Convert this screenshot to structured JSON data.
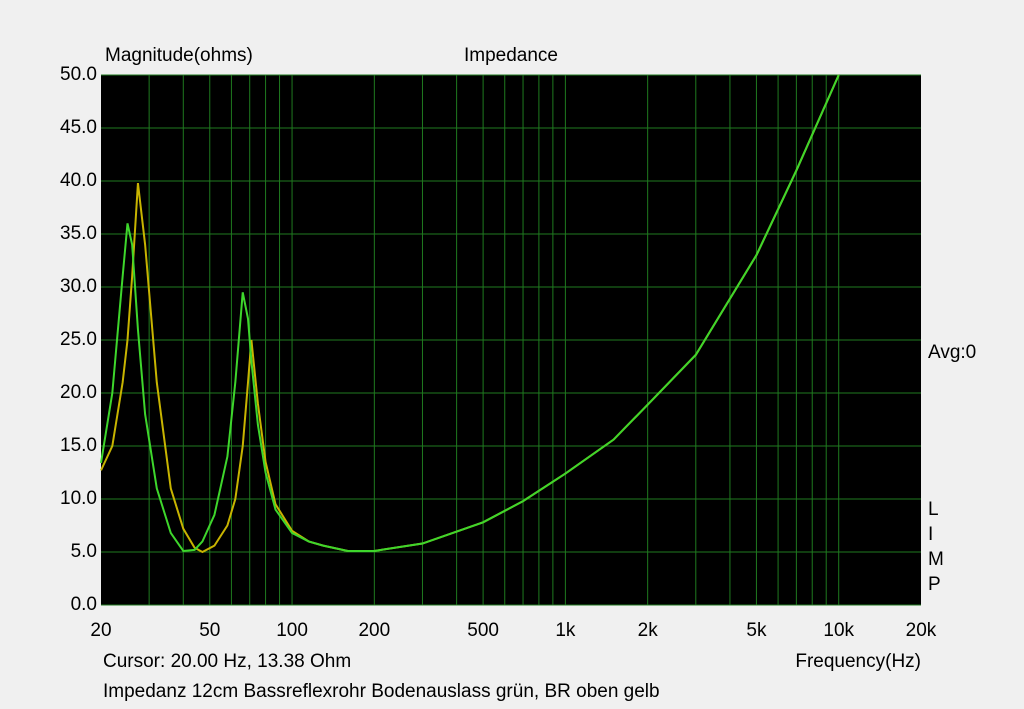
{
  "header": {
    "y_axis_title": "Magnitude(ohms)",
    "avg": "Avg:0",
    "limp": [
      "L",
      "I",
      "M",
      "P"
    ]
  },
  "chart_data": {
    "type": "line",
    "title": "Impedance",
    "xlabel": "Frequency(Hz)",
    "log_x": true,
    "x": [
      20,
      22,
      24,
      25,
      26,
      27.3,
      29,
      32,
      36,
      40,
      44,
      47,
      52,
      58,
      62,
      66,
      69,
      71,
      75,
      80,
      87,
      100,
      115,
      130,
      160,
      200,
      300,
      500,
      700,
      1000,
      1500,
      2000,
      3000,
      5000,
      7000,
      10000
    ],
    "series": [
      {
        "name": "BR oben gelb",
        "color": "#c8b400",
        "values": [
          12.7,
          15,
          21,
          25,
          31,
          39.8,
          34,
          21,
          11,
          7.2,
          5.4,
          5.0,
          5.6,
          7.5,
          10,
          15,
          21,
          25,
          19,
          13.5,
          9.5,
          7.0,
          6.0,
          5.6,
          5.1,
          5.1,
          5.8,
          7.8,
          9.8,
          12.4,
          15.6,
          18.9,
          23.6,
          33,
          41,
          50
        ]
      },
      {
        "name": "Bodenauslass grün",
        "color": "#3ed62c",
        "values": [
          13.4,
          20,
          31,
          36,
          34,
          26,
          18,
          11,
          6.8,
          5.1,
          5.2,
          6.0,
          8.5,
          14,
          21,
          29.5,
          27,
          23,
          17,
          12.5,
          9,
          6.8,
          6.0,
          5.6,
          5.1,
          5.1,
          5.8,
          7.8,
          9.8,
          12.4,
          15.6,
          18.9,
          23.6,
          33,
          41,
          50
        ]
      }
    ],
    "xlim": [
      20,
      20000
    ],
    "ylim": [
      0,
      50
    ],
    "xticks": [
      20,
      50,
      100,
      200,
      500,
      {
        "value": 1000,
        "label": "1k"
      },
      {
        "value": 2000,
        "label": "2k"
      },
      {
        "value": 5000,
        "label": "5k"
      },
      {
        "value": 10000,
        "label": "10k"
      },
      {
        "value": 20000,
        "label": "20k"
      }
    ],
    "x_gridlines": [
      30,
      40,
      50,
      60,
      70,
      80,
      90,
      100,
      200,
      300,
      400,
      500,
      600,
      700,
      800,
      900,
      1000,
      2000,
      3000,
      4000,
      5000,
      6000,
      7000,
      8000,
      9000,
      10000
    ],
    "yticks": [
      {
        "value": 0,
        "label": "0.0"
      },
      {
        "value": 5,
        "label": "5.0"
      },
      {
        "value": 10,
        "label": "10.0"
      },
      {
        "value": 15,
        "label": "15.0"
      },
      {
        "value": 20,
        "label": "20.0"
      },
      {
        "value": 25,
        "label": "25.0"
      },
      {
        "value": 30,
        "label": "30.0"
      },
      {
        "value": 35,
        "label": "35.0"
      },
      {
        "value": 40,
        "label": "40.0"
      },
      {
        "value": 45,
        "label": "45.0"
      },
      {
        "value": 50,
        "label": "50.0"
      }
    ],
    "grid": true,
    "plot_background": "#000000"
  },
  "footer": {
    "cursor": "Cursor: 20.00 Hz, 13.38 Ohm",
    "description": "Impedanz 12cm Bassreflexrohr Bodenauslass grün, BR oben gelb"
  }
}
